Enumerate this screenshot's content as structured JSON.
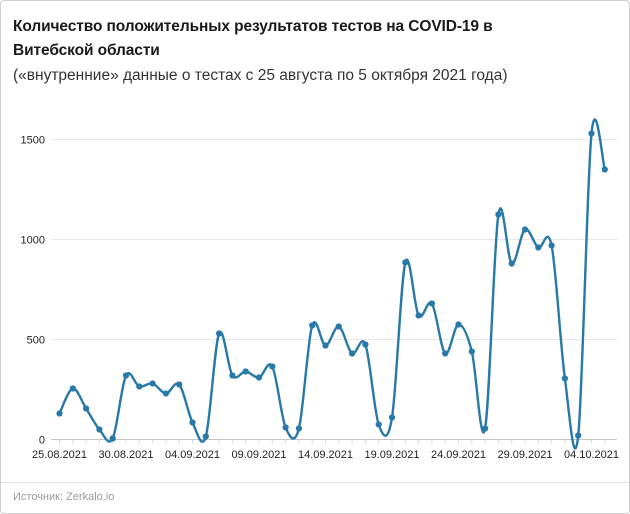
{
  "header": {
    "title": "Количество положительных результатов тестов на COVID-19 в Витебской области",
    "subtitle": "(«внутренние» данные о тестах с 25 августа по 5 октября 2021 года)"
  },
  "footer": {
    "source": "Источник: Zerkalo.io"
  },
  "chart_data": {
    "type": "line",
    "title": "Количество положительных результатов тестов на COVID-19 в Витебской области",
    "subtitle": "(«внутренние» данные о тестах с 25 августа по 5 октября 2021 года)",
    "x": [
      "25.08.2021",
      "26.08.2021",
      "27.08.2021",
      "28.08.2021",
      "29.08.2021",
      "30.08.2021",
      "31.08.2021",
      "01.09.2021",
      "02.09.2021",
      "03.09.2021",
      "04.09.2021",
      "05.09.2021",
      "06.09.2021",
      "07.09.2021",
      "08.09.2021",
      "09.09.2021",
      "10.09.2021",
      "11.09.2021",
      "12.09.2021",
      "13.09.2021",
      "14.09.2021",
      "15.09.2021",
      "16.09.2021",
      "17.09.2021",
      "18.09.2021",
      "19.09.2021",
      "20.09.2021",
      "21.09.2021",
      "22.09.2021",
      "23.09.2021",
      "24.09.2021",
      "25.09.2021",
      "26.09.2021",
      "27.09.2021",
      "28.09.2021",
      "29.09.2021",
      "30.09.2021",
      "01.10.2021",
      "02.10.2021",
      "03.10.2021",
      "04.10.2021",
      "05.10.2021"
    ],
    "values": [
      130,
      255,
      155,
      50,
      5,
      320,
      265,
      280,
      230,
      275,
      85,
      15,
      530,
      320,
      340,
      310,
      365,
      60,
      55,
      570,
      470,
      565,
      430,
      475,
      75,
      110,
      885,
      620,
      680,
      430,
      575,
      440,
      55,
      1125,
      880,
      1050,
      960,
      970,
      305,
      20,
      1530,
      1350
    ],
    "x_tick_labels": [
      "25.08.2021",
      "30.08.2021",
      "04.09.2021",
      "09.09.2021",
      "14.09.2021",
      "19.09.2021",
      "24.09.2021",
      "29.09.2021",
      "04.10.2021"
    ],
    "x_tick_every_days": 5,
    "y_ticks": [
      0,
      500,
      1000,
      1500
    ],
    "ylim": [
      0,
      1550
    ],
    "grid": true,
    "legend": "none",
    "line_color": "#2878a8",
    "marker": "circle",
    "grid_color": "#e7e7e7",
    "baseline_color": "#c4c4c4",
    "tick_color": "#d8d8d8",
    "axis_label_color": "#1f1f1f"
  }
}
